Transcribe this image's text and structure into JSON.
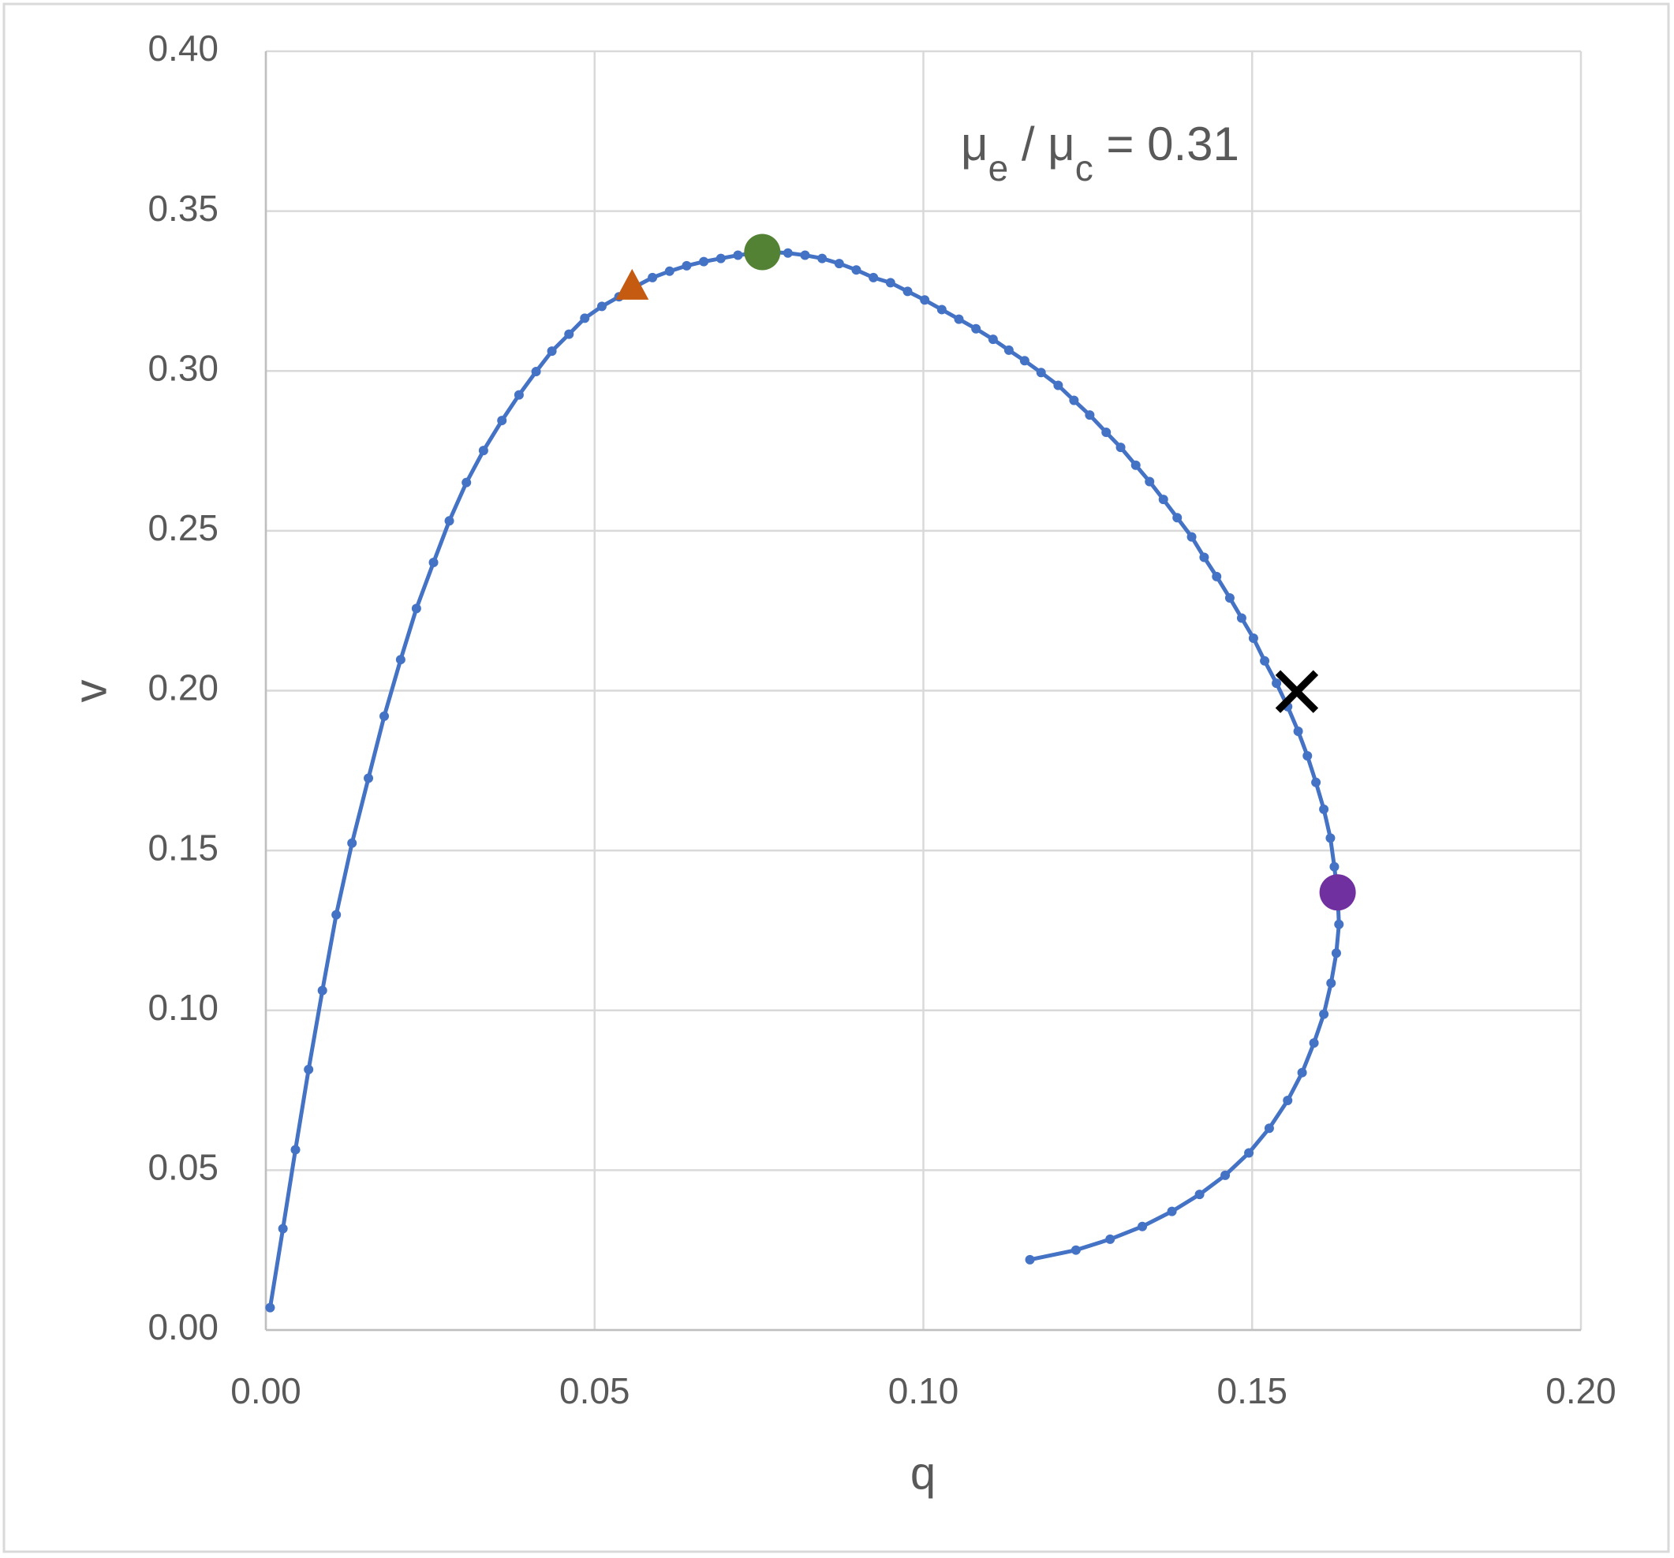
{
  "chart_data": {
    "type": "scatter",
    "x_label": "q",
    "y_label": "v",
    "annotation": [
      {
        "text": "μ",
        "sub": false
      },
      {
        "text": "e",
        "sub": true
      },
      {
        "text": " / μ",
        "sub": false
      },
      {
        "text": "c",
        "sub": true
      },
      {
        "text": " = 0.31",
        "sub": false
      }
    ],
    "xlim": [
      0,
      0.2
    ],
    "ylim": [
      0,
      0.4
    ],
    "xticks": [
      {
        "value": 0,
        "label": "0.00"
      },
      0.05,
      {
        "value": 0.1,
        "label": "0.10"
      },
      0.15,
      {
        "value": 0.2,
        "label": "0.20"
      }
    ],
    "yticks": [
      {
        "value": 0,
        "label": "0.00"
      },
      0.05,
      {
        "value": 0.1,
        "label": "0.10"
      },
      0.15,
      {
        "value": 0.2,
        "label": "0.20"
      },
      0.25,
      {
        "value": 0.3,
        "label": "0.30"
      },
      0.35,
      {
        "value": 0.4,
        "label": "0.40"
      }
    ],
    "grid": true,
    "series": [
      {
        "color": "#4472c4",
        "marker": "dot",
        "line": true,
        "x": [
          0.00065,
          0.0026,
          0.0045,
          0.0065,
          0.0086,
          0.0107,
          0.0131,
          0.0156,
          0.018,
          0.0205,
          0.0229,
          0.0255,
          0.0279,
          0.0305,
          0.0331,
          0.0359,
          0.0385,
          0.0411,
          0.0435,
          0.0461,
          0.0485,
          0.0511,
          0.0537,
          0.0563,
          0.0588,
          0.0614,
          0.064,
          0.0666,
          0.0692,
          0.0718,
          0.0744,
          0.0768,
          0.0794,
          0.082,
          0.0846,
          0.0872,
          0.0898,
          0.0924,
          0.095,
          0.0976,
          0.1002,
          0.1028,
          0.1054,
          0.108,
          0.1106,
          0.113,
          0.1154,
          0.1179,
          0.1205,
          0.1229,
          0.1253,
          0.1278,
          0.13,
          0.1323,
          0.1344,
          0.1365,
          0.1386,
          0.1408,
          0.1427,
          0.1446,
          0.1466,
          0.1484,
          0.1502,
          0.1519,
          0.1537,
          0.1554,
          0.157,
          0.1584,
          0.1597,
          0.1609,
          0.1619,
          0.1625,
          0.163,
          0.1632,
          0.1628,
          0.162,
          0.1609,
          0.1594,
          0.1576,
          0.1554,
          0.1526,
          0.1495,
          0.1459,
          0.142,
          0.1378,
          0.1333,
          0.1284,
          0.1232,
          0.1162
        ],
        "values": [
          0.007,
          0.0317,
          0.0564,
          0.0815,
          0.1062,
          0.1299,
          0.1523,
          0.1726,
          0.192,
          0.2097,
          0.2257,
          0.2401,
          0.2531,
          0.2651,
          0.2751,
          0.2845,
          0.2925,
          0.2998,
          0.3062,
          0.3115,
          0.3165,
          0.3202,
          0.3232,
          0.3265,
          0.3292,
          0.3312,
          0.3329,
          0.3342,
          0.3352,
          0.3362,
          0.3369,
          0.3372,
          0.3369,
          0.3362,
          0.3352,
          0.3336,
          0.3316,
          0.3292,
          0.3276,
          0.3249,
          0.3222,
          0.3192,
          0.3162,
          0.3132,
          0.3099,
          0.3065,
          0.3032,
          0.2995,
          0.2955,
          0.2908,
          0.2862,
          0.2808,
          0.2761,
          0.2705,
          0.2654,
          0.2598,
          0.2541,
          0.2481,
          0.2417,
          0.2357,
          0.229,
          0.2227,
          0.2164,
          0.2093,
          0.2023,
          0.195,
          0.1873,
          0.1796,
          0.1713,
          0.1629,
          0.1539,
          0.1449,
          0.1362,
          0.1269,
          0.1179,
          0.1085,
          0.0988,
          0.0898,
          0.0805,
          0.0718,
          0.0631,
          0.0554,
          0.0484,
          0.0424,
          0.0371,
          0.0324,
          0.0284,
          0.025,
          0.022
        ]
      },
      {
        "color": "#c55a11",
        "marker": "triangle",
        "line": false,
        "x": [
          0.0557
        ],
        "values": [
          0.3265
        ]
      },
      {
        "color": "#548235",
        "marker": "circle",
        "line": false,
        "x": [
          0.0755
        ],
        "values": [
          0.3372
        ]
      },
      {
        "color": "#7030a0",
        "marker": "circle",
        "line": false,
        "x": [
          0.163
        ],
        "values": [
          0.1369
        ]
      },
      {
        "color": "#000000",
        "marker": "cross",
        "line": false,
        "x": [
          0.1568
        ],
        "values": [
          0.1997
        ]
      }
    ]
  }
}
